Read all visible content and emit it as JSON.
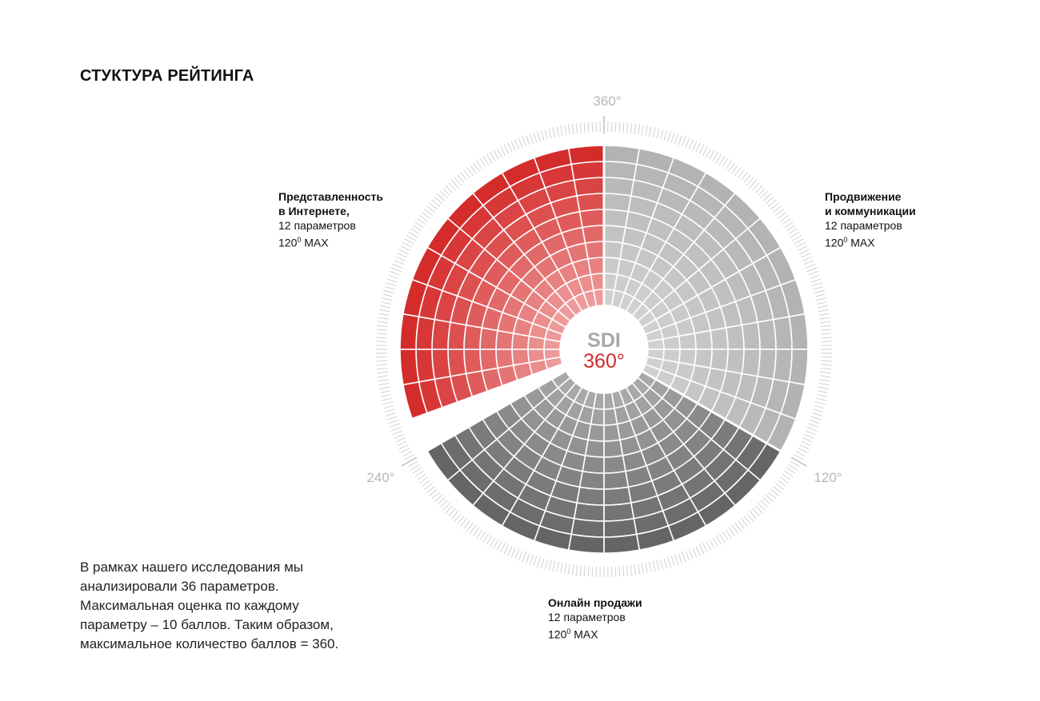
{
  "title": "СТУКТУРА РЕЙТИНГА",
  "center": {
    "line1": "SDI",
    "line2": "360°"
  },
  "degree_marks": {
    "top": "360°",
    "right": "120°",
    "left": "240°"
  },
  "segments": [
    {
      "name": "Представленность\nв Интернете,",
      "params": "12 параметров",
      "max_value": "120",
      "max_sup": "0",
      "max_unit": " MAX",
      "color": "#d42b2b"
    },
    {
      "name": "Продвижение\nи коммуникации",
      "params": "12 параметров",
      "max_value": "120",
      "max_sup": "0",
      "max_unit": " MAX",
      "color": "#b5b5b5"
    },
    {
      "name": "Онлайн продажи",
      "params": "12 параметров",
      "max_value": "120",
      "max_sup": "0",
      "max_unit": " MAX",
      "color": "#6f6f6f"
    }
  ],
  "description": "В рамках нашего исследования мы анализировали 36 параметров. Максимальная оценка по каждому параметру – 10 баллов. Таким образом, максимальное количество баллов = 360.",
  "structure": {
    "total_parameters": 36,
    "parameters_per_segment": 12,
    "max_score_per_parameter": 10,
    "max_total": 360
  },
  "colors": {
    "red_outer": "#d42b2b",
    "red_inner": "#ee9a9a",
    "light_gray_outer": "#b3b3b3",
    "light_gray_inner": "#d0d0d0",
    "dark_gray_outer": "#656565",
    "dark_gray_inner": "#a8a8a8",
    "center_gray": "#a9a9a9",
    "center_red": "#d42b2b",
    "tick": "#d0d0d0",
    "mark_text": "#b8b8b8"
  }
}
